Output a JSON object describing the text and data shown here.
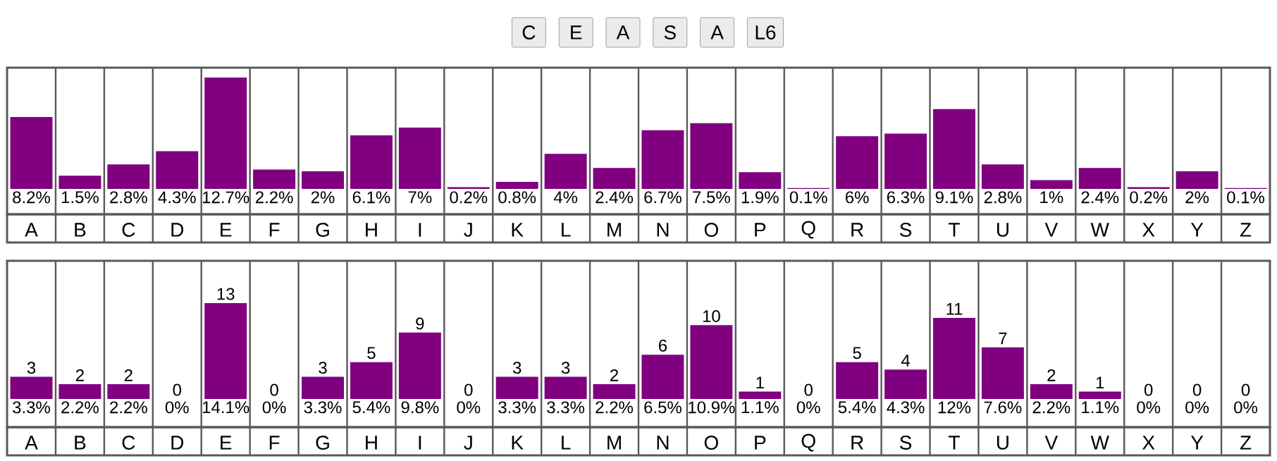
{
  "chart_data": [
    {
      "type": "bar",
      "categories": [
        "A",
        "B",
        "C",
        "D",
        "E",
        "F",
        "G",
        "H",
        "I",
        "J",
        "K",
        "L",
        "M",
        "N",
        "O",
        "P",
        "Q",
        "R",
        "S",
        "T",
        "U",
        "V",
        "W",
        "X",
        "Y",
        "Z"
      ],
      "values": [
        8.2,
        1.5,
        2.8,
        4.3,
        12.7,
        2.2,
        2,
        6.1,
        7,
        0.2,
        0.8,
        4,
        2.4,
        6.7,
        7.5,
        1.9,
        0.1,
        6,
        6.3,
        9.1,
        2.8,
        1,
        2.4,
        0.2,
        2,
        0.1
      ],
      "value_labels": [
        "8.2%",
        "1.5%",
        "2.8%",
        "4.3%",
        "12.7%",
        "2.2%",
        "2%",
        "6.1%",
        "7%",
        "0.2%",
        "0.8%",
        "4%",
        "2.4%",
        "6.7%",
        "7.5%",
        "1.9%",
        "0.1%",
        "6%",
        "6.3%",
        "9.1%",
        "2.8%",
        "1%",
        "2.4%",
        "0.2%",
        "2%",
        "0.1%"
      ],
      "color": "#800080",
      "annotations": [
        "C",
        "E",
        "A",
        "S",
        "A",
        "L6"
      ]
    },
    {
      "type": "bar",
      "categories": [
        "A",
        "B",
        "C",
        "D",
        "E",
        "F",
        "G",
        "H",
        "I",
        "J",
        "K",
        "L",
        "M",
        "N",
        "O",
        "P",
        "Q",
        "R",
        "S",
        "T",
        "U",
        "V",
        "W",
        "X",
        "Y",
        "Z"
      ],
      "values": [
        3,
        2,
        2,
        0,
        13,
        0,
        3,
        5,
        9,
        0,
        3,
        3,
        2,
        6,
        10,
        1,
        0,
        5,
        4,
        11,
        7,
        2,
        1,
        0,
        0,
        0
      ],
      "data_labels": true,
      "color": "#800080",
      "annotations": [
        "3.3%",
        "2.2%",
        "2.2%",
        "0%",
        "14.1%",
        "0%",
        "3.3%",
        "5.4%",
        "9.8%",
        "0%",
        "3.3%",
        "3.3%",
        "2.2%",
        "6.5%",
        "10.9%",
        "1.1%",
        "0%",
        "5.4%",
        "4.3%",
        "12%",
        "7.6%",
        "2.2%",
        "1.1%",
        "0%",
        "0%",
        "0%"
      ]
    }
  ]
}
